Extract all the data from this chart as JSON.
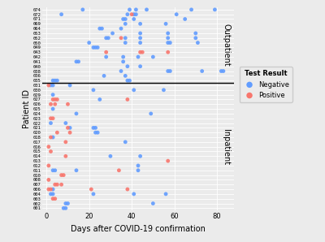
{
  "title": "",
  "xlabel": "Days after COVID-19 confirmation",
  "ylabel": "Patient ID",
  "xlim": [
    -2,
    88
  ],
  "background_color": "#EBEBEB",
  "panel_bg": "#EBEBEB",
  "negative_color": "#619CFF",
  "positive_color": "#F8766D",
  "dot_size": 12,
  "outpatient_ids": [
    "035",
    "036",
    "038",
    "040",
    "041",
    "042",
    "043",
    "049",
    "050",
    "052",
    "053",
    "064",
    "069",
    "071",
    "072",
    "074"
  ],
  "inpatient_ids": [
    "001",
    "002",
    "003",
    "004",
    "006",
    "007",
    "008",
    "010",
    "011",
    "012",
    "013",
    "014",
    "015",
    "016",
    "017",
    "018",
    "020",
    "021",
    "022",
    "023",
    "024",
    "025",
    "026",
    "027",
    "029",
    "030",
    "031"
  ],
  "data_points": [
    {
      "id": "074",
      "day": 17,
      "result": "Negative"
    },
    {
      "id": "074",
      "day": 39,
      "result": "Negative"
    },
    {
      "id": "074",
      "day": 42,
      "result": "Negative"
    },
    {
      "id": "074",
      "day": 47,
      "result": "Negative"
    },
    {
      "id": "074",
      "day": 68,
      "result": "Negative"
    },
    {
      "id": "074",
      "day": 79,
      "result": "Negative"
    },
    {
      "id": "072",
      "day": 7,
      "result": "Negative"
    },
    {
      "id": "072",
      "day": 38,
      "result": "Negative"
    },
    {
      "id": "072",
      "day": 40,
      "result": "Positive"
    },
    {
      "id": "072",
      "day": 41,
      "result": "Negative"
    },
    {
      "id": "072",
      "day": 42,
      "result": "Negative"
    },
    {
      "id": "072",
      "day": 61,
      "result": "Negative"
    },
    {
      "id": "071",
      "day": 36,
      "result": "Negative"
    },
    {
      "id": "071",
      "day": 37,
      "result": "Negative"
    },
    {
      "id": "071",
      "day": 41,
      "result": "Negative"
    },
    {
      "id": "071",
      "day": 65,
      "result": "Negative"
    },
    {
      "id": "069",
      "day": 37,
      "result": "Negative"
    },
    {
      "id": "069",
      "day": 44,
      "result": "Negative"
    },
    {
      "id": "069",
      "day": 56,
      "result": "Negative"
    },
    {
      "id": "064",
      "day": 25,
      "result": "Negative"
    },
    {
      "id": "064",
      "day": 26,
      "result": "Negative"
    },
    {
      "id": "064",
      "day": 35,
      "result": "Negative"
    },
    {
      "id": "053",
      "day": 31,
      "result": "Negative"
    },
    {
      "id": "053",
      "day": 44,
      "result": "Negative"
    },
    {
      "id": "053",
      "day": 57,
      "result": "Negative"
    },
    {
      "id": "053",
      "day": 70,
      "result": "Negative"
    },
    {
      "id": "052",
      "day": 28,
      "result": "Negative"
    },
    {
      "id": "052",
      "day": 29,
      "result": "Negative"
    },
    {
      "id": "052",
      "day": 35,
      "result": "Positive"
    },
    {
      "id": "052",
      "day": 37,
      "result": "Negative"
    },
    {
      "id": "052",
      "day": 44,
      "result": "Negative"
    },
    {
      "id": "052",
      "day": 57,
      "result": "Negative"
    },
    {
      "id": "052",
      "day": 70,
      "result": "Negative"
    },
    {
      "id": "050",
      "day": 20,
      "result": "Negative"
    },
    {
      "id": "050",
      "day": 37,
      "result": "Negative"
    },
    {
      "id": "050",
      "day": 44,
      "result": "Negative"
    },
    {
      "id": "050",
      "day": 57,
      "result": "Negative"
    },
    {
      "id": "050",
      "day": 58,
      "result": "Negative"
    },
    {
      "id": "050",
      "day": 71,
      "result": "Negative"
    },
    {
      "id": "049",
      "day": 22,
      "result": "Negative"
    },
    {
      "id": "049",
      "day": 23,
      "result": "Negative"
    },
    {
      "id": "049",
      "day": 24,
      "result": "Negative"
    },
    {
      "id": "043",
      "day": 28,
      "result": "Positive"
    },
    {
      "id": "043",
      "day": 44,
      "result": "Positive"
    },
    {
      "id": "043",
      "day": 45,
      "result": "Positive"
    },
    {
      "id": "043",
      "day": 57,
      "result": "Positive"
    },
    {
      "id": "042",
      "day": 28,
      "result": "Negative"
    },
    {
      "id": "042",
      "day": 36,
      "result": "Negative"
    },
    {
      "id": "042",
      "day": 43,
      "result": "Negative"
    },
    {
      "id": "042",
      "day": 50,
      "result": "Negative"
    },
    {
      "id": "041",
      "day": 14,
      "result": "Negative"
    },
    {
      "id": "041",
      "day": 15,
      "result": "Negative"
    },
    {
      "id": "041",
      "day": 36,
      "result": "Negative"
    },
    {
      "id": "040",
      "day": 38,
      "result": "Negative"
    },
    {
      "id": "040",
      "day": 44,
      "result": "Negative"
    },
    {
      "id": "038",
      "day": 35,
      "result": "Negative"
    },
    {
      "id": "038",
      "day": 57,
      "result": "Negative"
    },
    {
      "id": "038",
      "day": 58,
      "result": "Negative"
    },
    {
      "id": "038",
      "day": 73,
      "result": "Negative"
    },
    {
      "id": "038",
      "day": 82,
      "result": "Negative"
    },
    {
      "id": "038",
      "day": 83,
      "result": "Negative"
    },
    {
      "id": "036",
      "day": 27,
      "result": "Negative"
    },
    {
      "id": "036",
      "day": 37,
      "result": "Negative"
    },
    {
      "id": "035",
      "day": 3,
      "result": "Negative"
    },
    {
      "id": "035",
      "day": 4,
      "result": "Negative"
    },
    {
      "id": "035",
      "day": 5,
      "result": "Negative"
    },
    {
      "id": "035",
      "day": 38,
      "result": "Negative"
    },
    {
      "id": "035",
      "day": 39,
      "result": "Negative"
    },
    {
      "id": "031",
      "day": 1,
      "result": "Positive"
    },
    {
      "id": "031",
      "day": 2,
      "result": "Negative"
    },
    {
      "id": "031",
      "day": 3,
      "result": "Negative"
    },
    {
      "id": "031",
      "day": 11,
      "result": "Negative"
    },
    {
      "id": "030",
      "day": 22,
      "result": "Negative"
    },
    {
      "id": "030",
      "day": 41,
      "result": "Negative"
    },
    {
      "id": "030",
      "day": 55,
      "result": "Negative"
    },
    {
      "id": "029",
      "day": 3,
      "result": "Negative"
    },
    {
      "id": "027",
      "day": 3,
      "result": "Positive"
    },
    {
      "id": "027",
      "day": 4,
      "result": "Positive"
    },
    {
      "id": "027",
      "day": 5,
      "result": "Positive"
    },
    {
      "id": "027",
      "day": 25,
      "result": "Negative"
    },
    {
      "id": "027",
      "day": 38,
      "result": "Positive"
    },
    {
      "id": "026",
      "day": 2,
      "result": "Positive"
    },
    {
      "id": "026",
      "day": 4,
      "result": "Positive"
    },
    {
      "id": "026",
      "day": 10,
      "result": "Positive"
    },
    {
      "id": "025",
      "day": 3,
      "result": "Negative"
    },
    {
      "id": "024",
      "day": 14,
      "result": "Negative"
    },
    {
      "id": "024",
      "day": 49,
      "result": "Negative"
    },
    {
      "id": "023",
      "day": 2,
      "result": "Positive"
    },
    {
      "id": "023",
      "day": 3,
      "result": "Positive"
    },
    {
      "id": "022",
      "day": 2,
      "result": "Negative"
    },
    {
      "id": "022",
      "day": 9,
      "result": "Negative"
    },
    {
      "id": "021",
      "day": 10,
      "result": "Positive"
    },
    {
      "id": "021",
      "day": 11,
      "result": "Negative"
    },
    {
      "id": "021",
      "day": 22,
      "result": "Negative"
    },
    {
      "id": "021",
      "day": 23,
      "result": "Negative"
    },
    {
      "id": "020",
      "day": 5,
      "result": "Positive"
    },
    {
      "id": "020",
      "day": 11,
      "result": "Positive"
    },
    {
      "id": "020",
      "day": 23,
      "result": "Negative"
    },
    {
      "id": "020",
      "day": 24,
      "result": "Negative"
    },
    {
      "id": "018",
      "day": 2,
      "result": "Positive"
    },
    {
      "id": "018",
      "day": 3,
      "result": "Negative"
    },
    {
      "id": "017",
      "day": 9,
      "result": "Positive"
    },
    {
      "id": "017",
      "day": 37,
      "result": "Negative"
    },
    {
      "id": "016",
      "day": 1,
      "result": "Positive"
    },
    {
      "id": "015",
      "day": 2,
      "result": "Positive"
    },
    {
      "id": "014",
      "day": 9,
      "result": "Positive"
    },
    {
      "id": "014",
      "day": 30,
      "result": "Negative"
    },
    {
      "id": "014",
      "day": 44,
      "result": "Negative"
    },
    {
      "id": "013",
      "day": 57,
      "result": "Positive"
    },
    {
      "id": "012",
      "day": 1,
      "result": "Positive"
    },
    {
      "id": "012",
      "day": 43,
      "result": "Negative"
    },
    {
      "id": "011",
      "day": 3,
      "result": "Negative"
    },
    {
      "id": "011",
      "day": 4,
      "result": "Negative"
    },
    {
      "id": "011",
      "day": 14,
      "result": "Negative"
    },
    {
      "id": "011",
      "day": 34,
      "result": "Positive"
    },
    {
      "id": "011",
      "day": 43,
      "result": "Negative"
    },
    {
      "id": "010",
      "day": 7,
      "result": "Positive"
    },
    {
      "id": "010",
      "day": 8,
      "result": "Positive"
    },
    {
      "id": "008",
      "day": 1,
      "result": "Positive"
    },
    {
      "id": "007",
      "day": 4,
      "result": "Positive"
    },
    {
      "id": "007",
      "day": 5,
      "result": "Positive"
    },
    {
      "id": "007",
      "day": 7,
      "result": "Positive"
    },
    {
      "id": "006",
      "day": 1,
      "result": "Positive"
    },
    {
      "id": "006",
      "day": 2,
      "result": "Positive"
    },
    {
      "id": "006",
      "day": 3,
      "result": "Negative"
    },
    {
      "id": "006",
      "day": 21,
      "result": "Positive"
    },
    {
      "id": "006",
      "day": 38,
      "result": "Positive"
    },
    {
      "id": "004",
      "day": 2,
      "result": "Negative"
    },
    {
      "id": "004",
      "day": 3,
      "result": "Negative"
    },
    {
      "id": "004",
      "day": 22,
      "result": "Negative"
    },
    {
      "id": "004",
      "day": 41,
      "result": "Negative"
    },
    {
      "id": "004",
      "day": 56,
      "result": "Negative"
    },
    {
      "id": "003",
      "day": 3,
      "result": "Positive"
    },
    {
      "id": "003",
      "day": 4,
      "result": "Positive"
    },
    {
      "id": "002",
      "day": 9,
      "result": "Negative"
    },
    {
      "id": "002",
      "day": 10,
      "result": "Negative"
    },
    {
      "id": "002",
      "day": 50,
      "result": "Negative"
    },
    {
      "id": "001",
      "day": 8,
      "result": "Negative"
    },
    {
      "id": "001",
      "day": 9,
      "result": "Negative"
    }
  ]
}
